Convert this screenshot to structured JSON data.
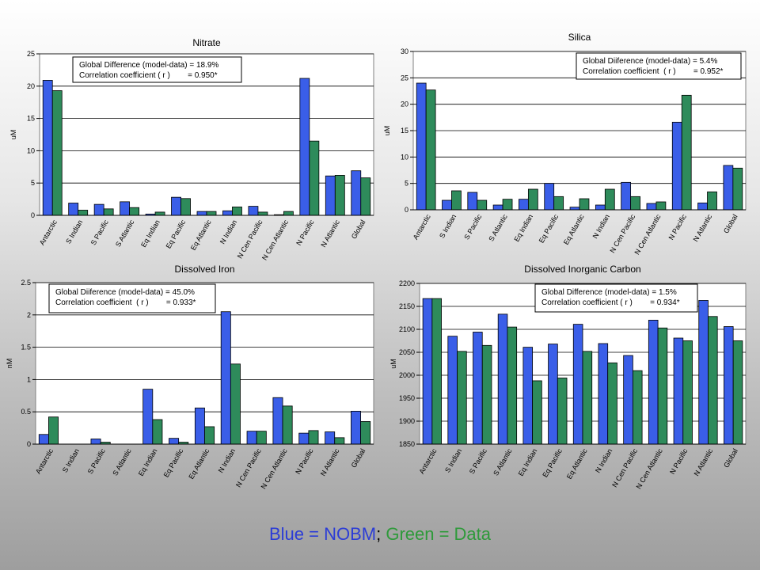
{
  "colors": {
    "model": "#3a5ee8",
    "data": "#2e8b5b"
  },
  "caption": {
    "part1": "Blue = NOBM",
    "sep": ";",
    "part2": "Green = Data"
  },
  "chart_data": [
    {
      "type": "bar",
      "title": "Nitrate",
      "ylabel": "uM",
      "ylim": [
        0,
        25
      ],
      "yticks": [
        0,
        5,
        10,
        15,
        20,
        25
      ],
      "grid": true,
      "categories": [
        "Antarctic",
        "S Indian",
        "S Pacific",
        "S Atlantic",
        "Eq Indian",
        "Eq Pacific",
        "Eq Atlantic",
        "N Indian",
        "N Cen Pacific",
        "N Cen Atlantic",
        "N Pacific",
        "N Atlantic",
        "Global"
      ],
      "series": [
        {
          "values": [
            20.9,
            1.9,
            1.7,
            2.1,
            0.2,
            2.8,
            0.6,
            0.7,
            1.4,
            0.1,
            21.2,
            6.1,
            6.9
          ]
        },
        {
          "values": [
            19.3,
            0.8,
            1.0,
            1.2,
            0.5,
            2.6,
            0.6,
            1.3,
            0.5,
            0.6,
            11.5,
            6.2,
            5.8
          ]
        }
      ],
      "stats": {
        "line1": "Global Difference (model-data) = 18.9%",
        "line2": "Correlation coefficient ( r )        = 0.950*"
      }
    },
    {
      "type": "bar",
      "title": "Silica",
      "ylabel": "uM",
      "ylim": [
        0,
        30
      ],
      "yticks": [
        0,
        5,
        10,
        15,
        20,
        25,
        30
      ],
      "grid": true,
      "categories": [
        "Antarctic",
        "S Indian",
        "S Pacific",
        "S Atlantic",
        "Eq Indian",
        "Eq Pacific",
        "Eq Atlantic",
        "N Indian",
        "N Cen Pacific",
        "N Cen Atlantic",
        "N Pacific",
        "N Atlantic",
        "Global"
      ],
      "series": [
        {
          "values": [
            24.0,
            1.8,
            3.3,
            0.9,
            2.0,
            5.0,
            0.5,
            0.9,
            5.2,
            1.2,
            16.6,
            1.3,
            8.4
          ]
        },
        {
          "values": [
            22.7,
            3.6,
            1.8,
            2.0,
            3.9,
            2.5,
            2.1,
            3.9,
            2.5,
            1.5,
            21.7,
            3.4,
            7.9
          ]
        }
      ],
      "stats": {
        "line1": "Global Diiference (model-data) = 5.4%",
        "line2": "Correlation coefficient  ( r )        = 0.952*"
      }
    },
    {
      "type": "bar",
      "title": "Dissolved Iron",
      "ylabel": "nM",
      "ylim": [
        0,
        2.5
      ],
      "yticks": [
        0,
        0.5,
        1,
        1.5,
        2,
        2.5
      ],
      "ytick_labels": [
        "0",
        "0.5",
        "1",
        "1.5",
        "2",
        "2.5"
      ],
      "grid": true,
      "categories": [
        "Antarctic",
        "S Indian",
        "S Pacific",
        "S Atlantic",
        "Eq Indian",
        "Eq Pacific",
        "Eq Atlantic",
        "N Indian",
        "N Cen Pacific",
        "N Cen Atlantic",
        "N Pacific",
        "N Atlantic",
        "Global"
      ],
      "series": [
        {
          "values": [
            0.15,
            0.0,
            0.08,
            0.0,
            0.85,
            0.09,
            0.56,
            2.05,
            0.2,
            0.72,
            0.17,
            0.19,
            0.51
          ]
        },
        {
          "values": [
            0.42,
            0.0,
            0.03,
            0.0,
            0.38,
            0.03,
            0.27,
            1.24,
            0.2,
            0.59,
            0.21,
            0.1,
            0.35
          ]
        }
      ],
      "stats": {
        "line1": "Global Diiference (model-data) = 45.0%",
        "line2": "Correlation coefficient  ( r )        = 0.933*"
      }
    },
    {
      "type": "bar",
      "title": "Dissolved Inorganic Carbon",
      "ylabel": "uM",
      "ylim": [
        1850,
        2200
      ],
      "yticks": [
        1850,
        1900,
        1950,
        2000,
        2050,
        2100,
        2150,
        2200
      ],
      "grid": true,
      "categories": [
        "Antarctic",
        "S Indian",
        "S Pacific",
        "S Atlantic",
        "Eq Indian",
        "Eq Pacific",
        "Eq Atlantic",
        "N Indian",
        "N Cen Pacific",
        "N Cen Atlantic",
        "N Pacific",
        "N Atlantic",
        "Global"
      ],
      "series": [
        {
          "values": [
            2167,
            2085,
            2094,
            2133,
            2061,
            2068,
            2111,
            2069,
            2043,
            2120,
            2081,
            2163,
            2106
          ]
        },
        {
          "values": [
            2167,
            2052,
            2065,
            2105,
            1988,
            1994,
            2052,
            2027,
            2010,
            2103,
            2075,
            2128,
            2075
          ]
        }
      ],
      "stats": {
        "line1": "Global Difference (model-data) = 1.5%",
        "line2": "Correlation coefficient ( r )        = 0.934*"
      }
    }
  ]
}
